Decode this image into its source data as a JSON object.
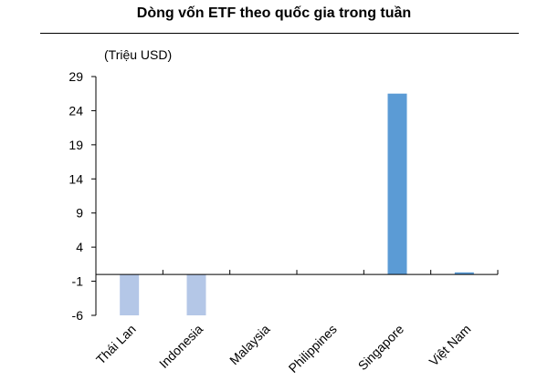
{
  "chart_data": {
    "type": "bar",
    "title": "Dòng vốn ETF theo quốc gia trong tuần",
    "unit_label": "(Triệu USD)",
    "xlabel": "",
    "ylabel": "",
    "categories": [
      "Thái Lan",
      "Indonesia",
      "Malaysia",
      "Philippines",
      "Singapore",
      "Việt Nam"
    ],
    "values": [
      -6.0,
      -6.0,
      0.0,
      0.0,
      26.5,
      0.3
    ],
    "ylim": [
      -6,
      29
    ],
    "yticks": [
      -6,
      -1,
      4,
      9,
      14,
      19,
      24,
      29
    ],
    "bar_colors": [
      "#b4c7e7",
      "#b4c7e7",
      "#b4c7e7",
      "#b4c7e7",
      "#5b9bd5",
      "#5b9bd5"
    ],
    "grid": false,
    "legend": "none"
  }
}
